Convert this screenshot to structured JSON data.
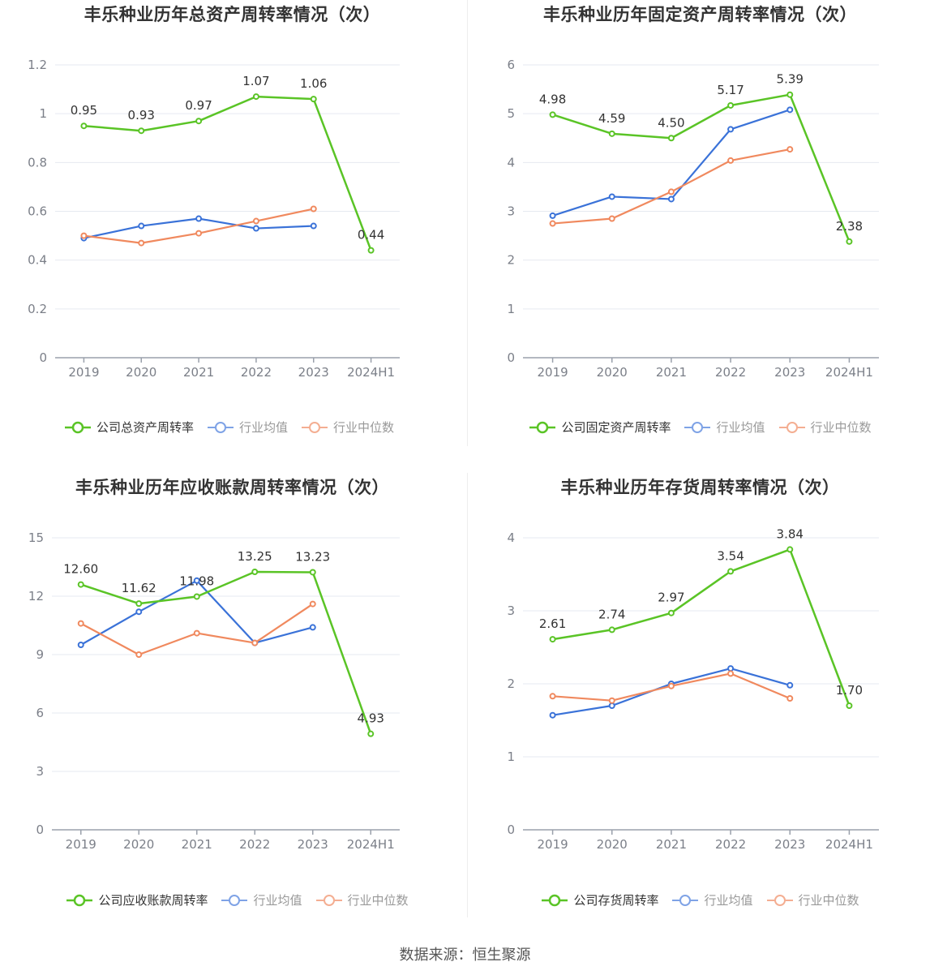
{
  "source": "数据来源：恒生聚源",
  "colors": {
    "company": "#5ac426",
    "avg": "#3a72d8",
    "median": "#f0895e",
    "grid": "#e6e9f0",
    "axis": "#9aa0ab",
    "tick": "#7b7f88"
  },
  "charts": [
    {
      "id": "total-asset",
      "title": "丰乐种业历年总资产周转率情况（次）",
      "legend": [
        "公司总资产周转率",
        "行业均值",
        "行业中位数"
      ],
      "chart_data": {
        "type": "line",
        "categories": [
          "2019",
          "2020",
          "2021",
          "2022",
          "2023",
          "2024H1"
        ],
        "ylim": [
          0,
          1.2
        ],
        "yticks": [
          0,
          0.2,
          0.4,
          0.6,
          0.8,
          1,
          1.2
        ],
        "ytick_labels": [
          "0",
          "0.2",
          "0.4",
          "0.6",
          "0.8",
          "1",
          "1.2"
        ],
        "series": [
          {
            "name": "公司总资产周转率",
            "values": [
              0.95,
              0.93,
              0.97,
              1.07,
              1.06,
              0.44
            ],
            "labels": [
              "0.95",
              "0.93",
              "0.97",
              "1.07",
              "1.06",
              "0.44"
            ]
          },
          {
            "name": "行业均值",
            "values": [
              0.49,
              0.54,
              0.57,
              0.53,
              0.54,
              null
            ]
          },
          {
            "name": "行业中位数",
            "values": [
              0.5,
              0.47,
              0.51,
              0.56,
              0.61,
              null
            ]
          }
        ]
      }
    },
    {
      "id": "fixed-asset",
      "title": "丰乐种业历年固定资产周转率情况（次）",
      "legend": [
        "公司固定资产周转率",
        "行业均值",
        "行业中位数"
      ],
      "chart_data": {
        "type": "line",
        "categories": [
          "2019",
          "2020",
          "2021",
          "2022",
          "2023",
          "2024H1"
        ],
        "ylim": [
          0,
          6
        ],
        "yticks": [
          0,
          1,
          2,
          3,
          4,
          5,
          6
        ],
        "ytick_labels": [
          "0",
          "1",
          "2",
          "3",
          "4",
          "5",
          "6"
        ],
        "series": [
          {
            "name": "公司固定资产周转率",
            "values": [
              4.98,
              4.59,
              4.5,
              5.17,
              5.39,
              2.38
            ],
            "labels": [
              "4.98",
              "4.59",
              "4.50",
              "5.17",
              "5.39",
              "2.38"
            ]
          },
          {
            "name": "行业均值",
            "values": [
              2.91,
              3.3,
              3.25,
              4.68,
              5.08,
              null
            ]
          },
          {
            "name": "行业中位数",
            "values": [
              2.75,
              2.85,
              3.4,
              4.04,
              4.27,
              null
            ]
          }
        ]
      }
    },
    {
      "id": "receivable",
      "title": "丰乐种业历年应收账款周转率情况（次）",
      "legend": [
        "公司应收账款周转率",
        "行业均值",
        "行业中位数"
      ],
      "chart_data": {
        "type": "line",
        "categories": [
          "2019",
          "2020",
          "2021",
          "2022",
          "2023",
          "2024H1"
        ],
        "ylim": [
          0,
          15
        ],
        "yticks": [
          0,
          3,
          6,
          9,
          12,
          15
        ],
        "ytick_labels": [
          "0",
          "3",
          "6",
          "9",
          "12",
          "15"
        ],
        "series": [
          {
            "name": "公司应收账款周转率",
            "values": [
              12.6,
              11.62,
              11.98,
              13.25,
              13.23,
              4.93
            ],
            "labels": [
              "12.60",
              "11.62",
              "11.98",
              "13.25",
              "13.23",
              "4.93"
            ]
          },
          {
            "name": "行业均值",
            "values": [
              9.5,
              11.2,
              12.8,
              9.6,
              10.4,
              null
            ]
          },
          {
            "name": "行业中位数",
            "values": [
              10.6,
              9.0,
              10.1,
              9.6,
              11.6,
              null
            ]
          }
        ]
      }
    },
    {
      "id": "inventory",
      "title": "丰乐种业历年存货周转率情况（次）",
      "legend": [
        "公司存货周转率",
        "行业均值",
        "行业中位数"
      ],
      "chart_data": {
        "type": "line",
        "categories": [
          "2019",
          "2020",
          "2021",
          "2022",
          "2023",
          "2024H1"
        ],
        "ylim": [
          0,
          4
        ],
        "yticks": [
          0,
          1,
          2,
          3,
          4
        ],
        "ytick_labels": [
          "0",
          "1",
          "2",
          "3",
          "4"
        ],
        "series": [
          {
            "name": "公司存货周转率",
            "values": [
              2.61,
              2.74,
              2.97,
              3.54,
              3.84,
              1.7
            ],
            "labels": [
              "2.61",
              "2.74",
              "2.97",
              "3.54",
              "3.84",
              "1.70"
            ]
          },
          {
            "name": "行业均值",
            "values": [
              1.57,
              1.7,
              2.0,
              2.21,
              1.98,
              null
            ]
          },
          {
            "name": "行业中位数",
            "values": [
              1.83,
              1.77,
              1.97,
              2.14,
              1.8,
              null
            ]
          }
        ]
      }
    }
  ]
}
